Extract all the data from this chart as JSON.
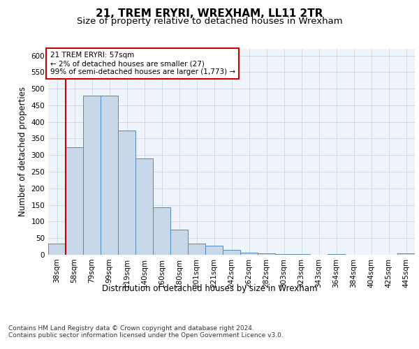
{
  "title1": "21, TREM ERYRI, WREXHAM, LL11 2TR",
  "title2": "Size of property relative to detached houses in Wrexham",
  "xlabel": "Distribution of detached houses by size in Wrexham",
  "ylabel": "Number of detached properties",
  "categories": [
    "38sqm",
    "58sqm",
    "79sqm",
    "99sqm",
    "119sqm",
    "140sqm",
    "160sqm",
    "180sqm",
    "201sqm",
    "221sqm",
    "242sqm",
    "262sqm",
    "282sqm",
    "303sqm",
    "323sqm",
    "343sqm",
    "364sqm",
    "384sqm",
    "404sqm",
    "425sqm",
    "445sqm"
  ],
  "values": [
    33,
    323,
    480,
    480,
    375,
    290,
    143,
    75,
    33,
    28,
    15,
    7,
    5,
    3,
    2,
    1,
    2,
    1,
    0,
    0,
    5
  ],
  "bar_color": "#c8d8e8",
  "bar_edge_color": "#5588bb",
  "annotation_text": "21 TREM ERYRI: 57sqm\n← 2% of detached houses are smaller (27)\n99% of semi-detached houses are larger (1,773) →",
  "annotation_box_color": "#ffffff",
  "annotation_box_edge_color": "#cc0000",
  "vline_color": "#cc0000",
  "vline_x": 0.5,
  "ylim": [
    0,
    620
  ],
  "yticks": [
    0,
    50,
    100,
    150,
    200,
    250,
    300,
    350,
    400,
    450,
    500,
    550,
    600
  ],
  "grid_color": "#ccdde8",
  "background_color": "#eef4fa",
  "footer1": "Contains HM Land Registry data © Crown copyright and database right 2024.",
  "footer2": "Contains public sector information licensed under the Open Government Licence v3.0.",
  "title_fontsize": 11,
  "subtitle_fontsize": 9.5,
  "axis_label_fontsize": 8.5,
  "tick_fontsize": 7.5,
  "footer_fontsize": 6.5,
  "annotation_fontsize": 7.5
}
